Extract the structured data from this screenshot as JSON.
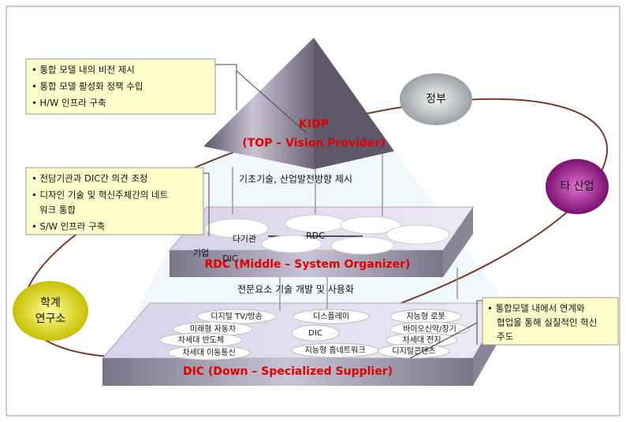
{
  "boxes": [
    {
      "lines": [
        "• 통합 모델 내의 비전 제시",
        "• 통합 모델 활성화 정책 수립",
        "• H/W 인프라 구축"
      ]
    },
    {
      "lines": [
        "• 전담기관과 DIC간 의견 조정",
        "• 디자인 기술 및 혁신주체간의 네트",
        "워크 통합",
        "• S/W 인프라 구축"
      ]
    },
    {
      "lines": [
        "• 통합모델 내에서 연계와",
        "협업을 통해 실질적인 혁신",
        "주도"
      ]
    }
  ],
  "actors": {
    "government": "정부",
    "industry": "타 산업",
    "academia": [
      "학계",
      "연구소"
    ]
  },
  "pyramid": {
    "top_title": "KIDP",
    "top_subtitle": "(TOP – Vision Provider)",
    "top_to_middle": "기초기술, 산업발전방향 제시",
    "middle_title": "RDC (Middle – System Organizer)",
    "middle_to_bottom": "전문요소 기술 개발 및 사용화",
    "bottom_title": "DIC (Down – Specialized Supplier)"
  },
  "middle_labels": [
    "RDC",
    "다기관",
    "기업",
    "DIC"
  ],
  "bottom_items": [
    "디지털 TV/방송",
    "디스플레이",
    "미래형 자동차",
    "차세대 반도체",
    "차세대 이동통신",
    "DIC",
    "지능형 홈네트워크",
    "지능형 로봇",
    "바이오신약/장기",
    "차세대 전지",
    "디지털콘텐츠"
  ]
}
